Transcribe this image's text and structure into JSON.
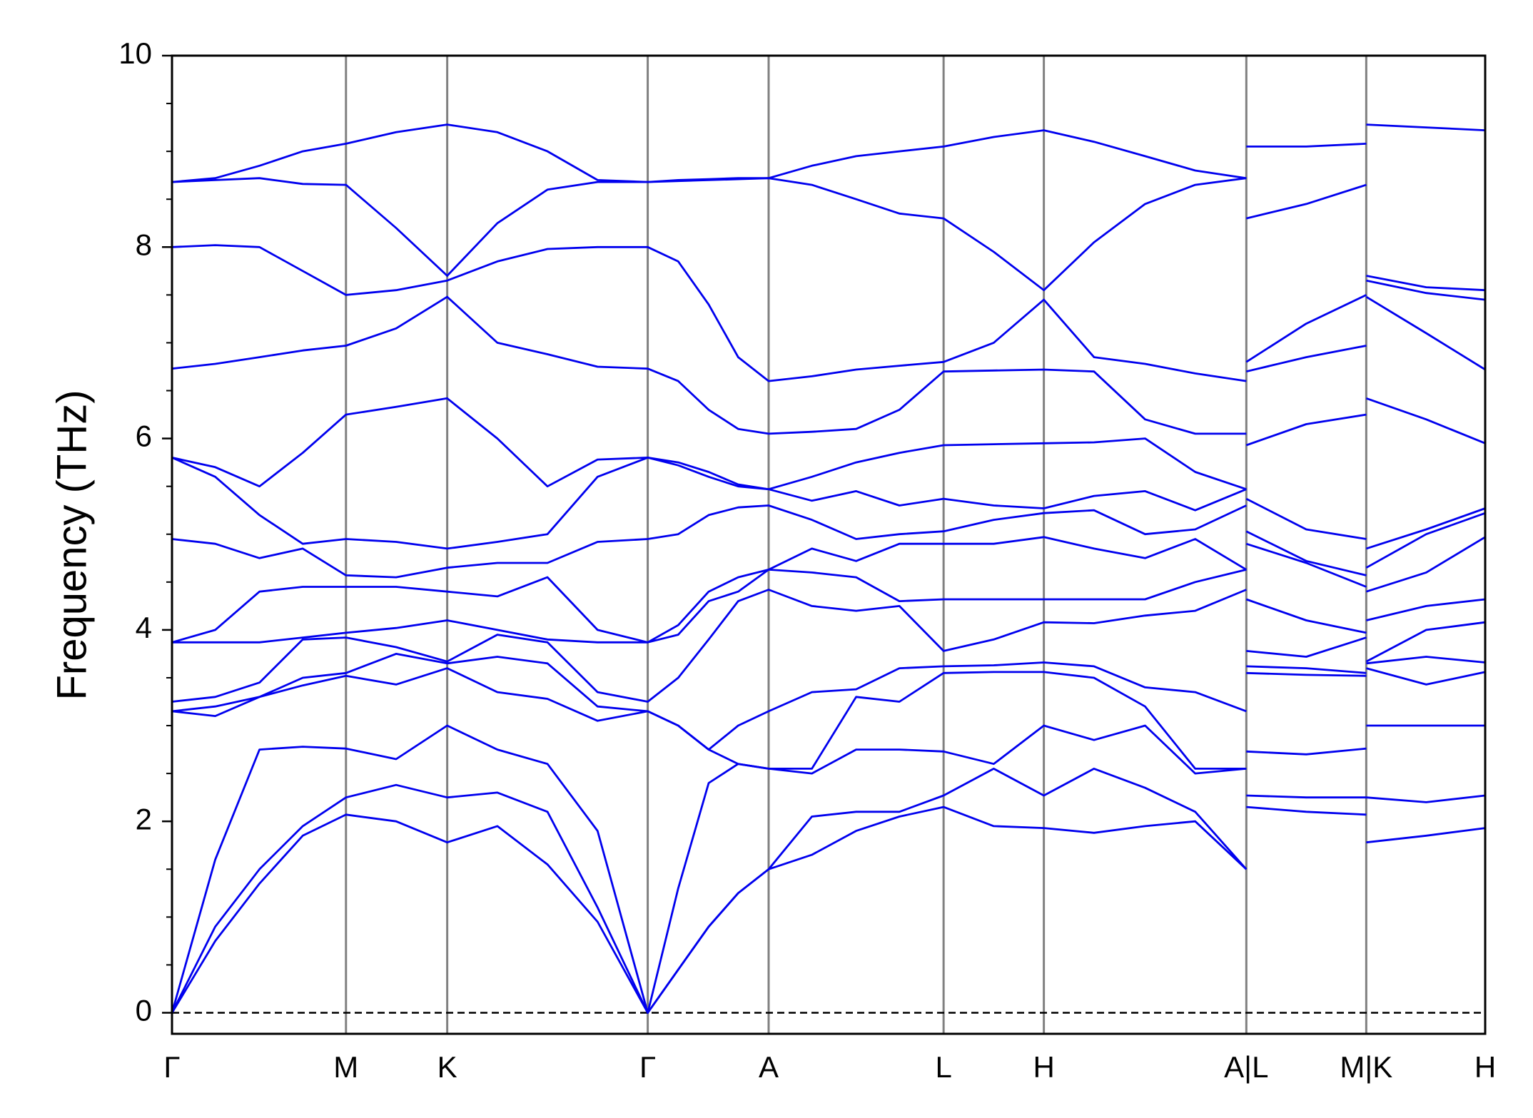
{
  "chart_data": {
    "type": "line",
    "ylabel": "Frequency (THz)",
    "color": "#0000ee",
    "axis_line_color": "#808080",
    "x": [
      0,
      0.44,
      0.89,
      1.33,
      1.77,
      2.28,
      2.8,
      3.31,
      3.82,
      4.33,
      4.84,
      5.15,
      5.46,
      5.76,
      6.07,
      6.51,
      6.96,
      7.4,
      7.85,
      8.36,
      8.87,
      9.38,
      9.9,
      10.41,
      10.93,
      10.93,
      10.93,
      11.54,
      12.15,
      12.15,
      12.15,
      12.76,
      13.36
    ],
    "xlim": [
      0,
      13.36
    ],
    "xticks": [
      {
        "value": 0,
        "label": "Γ"
      },
      {
        "value": 1.77,
        "label": "M"
      },
      {
        "value": 2.8,
        "label": "K"
      },
      {
        "value": 4.84,
        "label": "Γ"
      },
      {
        "value": 6.07,
        "label": "A"
      },
      {
        "value": 7.85,
        "label": "L"
      },
      {
        "value": 8.87,
        "label": "H"
      },
      {
        "value": 10.93,
        "label": "A|L"
      },
      {
        "value": 12.15,
        "label": "M|K"
      },
      {
        "value": 13.36,
        "label": "H"
      }
    ],
    "ylim": [
      -0.22,
      10
    ],
    "yticks": [
      0,
      2,
      4,
      6,
      8,
      10
    ],
    "hlines": [
      0
    ],
    "series": [
      {
        "values": [
          0,
          0.75,
          1.35,
          1.85,
          2.07,
          2.0,
          1.78,
          1.95,
          1.55,
          0.95,
          0,
          0.45,
          0.9,
          1.25,
          1.5,
          1.65,
          1.9,
          2.05,
          2.15,
          1.95,
          1.93,
          1.88,
          1.95,
          2.0,
          1.5,
          null,
          2.15,
          2.1,
          2.07,
          null,
          1.78,
          1.85,
          1.93
        ]
      },
      {
        "values": [
          0,
          0.9,
          1.5,
          1.95,
          2.25,
          2.38,
          2.25,
          2.3,
          2.1,
          1.1,
          0,
          0.45,
          0.9,
          1.25,
          1.5,
          2.05,
          2.1,
          2.1,
          2.27,
          2.55,
          2.27,
          2.55,
          2.35,
          2.1,
          1.5,
          null,
          2.27,
          2.25,
          2.25,
          null,
          2.25,
          2.2,
          2.27
        ]
      },
      {
        "values": [
          0,
          1.6,
          2.75,
          2.78,
          2.76,
          2.65,
          3.0,
          2.75,
          2.6,
          1.9,
          0,
          1.3,
          2.4,
          2.6,
          2.55,
          2.5,
          2.75,
          2.75,
          2.73,
          2.6,
          3.0,
          2.85,
          3.0,
          2.5,
          2.55,
          null,
          2.73,
          2.7,
          2.76,
          null,
          3.0,
          3.0,
          3.0
        ]
      },
      {
        "values": [
          3.15,
          3.1,
          3.3,
          3.42,
          3.52,
          3.43,
          3.6,
          3.35,
          3.28,
          3.05,
          3.15,
          3.0,
          2.75,
          2.6,
          2.55,
          2.55,
          3.3,
          3.25,
          3.55,
          3.56,
          3.56,
          3.5,
          3.2,
          2.55,
          2.55,
          null,
          3.55,
          3.53,
          3.52,
          null,
          3.6,
          3.43,
          3.56
        ]
      },
      {
        "values": [
          3.15,
          3.2,
          3.3,
          3.5,
          3.55,
          3.75,
          3.65,
          3.72,
          3.65,
          3.2,
          3.15,
          3.0,
          2.75,
          3.0,
          3.15,
          3.35,
          3.38,
          3.6,
          3.62,
          3.63,
          3.66,
          3.62,
          3.4,
          3.35,
          3.15,
          null,
          3.62,
          3.6,
          3.55,
          null,
          3.65,
          3.72,
          3.66
        ]
      },
      {
        "values": [
          3.25,
          3.3,
          3.45,
          3.9,
          3.92,
          3.82,
          3.67,
          3.95,
          3.87,
          3.35,
          3.25,
          3.5,
          3.9,
          4.3,
          4.42,
          4.25,
          4.2,
          4.25,
          3.78,
          3.9,
          4.08,
          4.07,
          4.15,
          4.2,
          4.42,
          null,
          3.78,
          3.72,
          3.92,
          null,
          3.67,
          4.0,
          4.08
        ]
      },
      {
        "values": [
          3.87,
          3.87,
          3.87,
          3.92,
          3.97,
          4.02,
          4.1,
          4.0,
          3.9,
          3.87,
          3.87,
          3.95,
          4.3,
          4.4,
          4.63,
          4.6,
          4.55,
          4.3,
          4.32,
          4.32,
          4.32,
          4.32,
          4.32,
          4.5,
          4.63,
          null,
          4.32,
          4.1,
          3.97,
          null,
          4.1,
          4.25,
          4.32
        ]
      },
      {
        "values": [
          3.87,
          4.0,
          4.4,
          4.45,
          4.45,
          4.45,
          4.4,
          4.35,
          4.55,
          4.0,
          3.87,
          4.05,
          4.4,
          4.55,
          4.63,
          4.85,
          4.72,
          4.9,
          4.9,
          4.9,
          4.97,
          4.85,
          4.75,
          4.95,
          4.63,
          null,
          4.9,
          4.7,
          4.45,
          null,
          4.4,
          4.6,
          4.97
        ]
      },
      {
        "values": [
          4.95,
          4.9,
          4.75,
          4.85,
          4.57,
          4.55,
          4.65,
          4.7,
          4.7,
          4.92,
          4.95,
          5.0,
          5.2,
          5.28,
          5.3,
          5.15,
          4.95,
          5.0,
          5.03,
          5.15,
          5.22,
          5.25,
          5.0,
          5.05,
          5.3,
          null,
          5.03,
          4.72,
          4.57,
          null,
          4.65,
          5.0,
          5.22
        ]
      },
      {
        "values": [
          5.8,
          5.6,
          5.2,
          4.9,
          4.95,
          4.92,
          4.85,
          4.92,
          5.0,
          5.6,
          5.8,
          5.72,
          5.6,
          5.5,
          5.47,
          5.35,
          5.45,
          5.3,
          5.37,
          5.3,
          5.27,
          5.4,
          5.45,
          5.25,
          5.47,
          null,
          5.37,
          5.05,
          4.95,
          null,
          4.85,
          5.05,
          5.27
        ]
      },
      {
        "values": [
          5.8,
          5.7,
          5.5,
          5.85,
          6.25,
          6.33,
          6.42,
          6.0,
          5.5,
          5.78,
          5.8,
          5.75,
          5.65,
          5.52,
          5.47,
          5.6,
          5.75,
          5.85,
          5.93,
          5.94,
          5.95,
          5.96,
          6.0,
          5.65,
          5.47,
          null,
          5.93,
          6.15,
          6.25,
          null,
          6.42,
          6.2,
          5.95
        ]
      },
      {
        "values": [
          6.73,
          6.78,
          6.85,
          6.92,
          6.97,
          7.15,
          7.48,
          7.0,
          6.88,
          6.75,
          6.73,
          6.6,
          6.3,
          6.1,
          6.05,
          6.07,
          6.1,
          6.3,
          6.7,
          6.71,
          6.72,
          6.7,
          6.2,
          6.05,
          6.05,
          null,
          6.7,
          6.85,
          6.97,
          null,
          7.48,
          7.1,
          6.72
        ]
      },
      {
        "values": [
          8.0,
          8.02,
          8.0,
          7.75,
          7.5,
          7.55,
          7.65,
          7.85,
          7.98,
          8.0,
          8.0,
          7.85,
          7.4,
          6.85,
          6.6,
          6.65,
          6.72,
          6.76,
          6.8,
          7.0,
          7.45,
          6.85,
          6.78,
          6.68,
          6.6,
          null,
          6.8,
          7.2,
          7.5,
          null,
          7.65,
          7.52,
          7.45
        ]
      },
      {
        "values": [
          8.68,
          8.7,
          8.72,
          8.66,
          8.65,
          8.2,
          7.7,
          8.25,
          8.6,
          8.68,
          8.68,
          8.69,
          8.7,
          8.71,
          8.72,
          8.65,
          8.5,
          8.35,
          8.3,
          7.95,
          7.55,
          8.05,
          8.45,
          8.65,
          8.72,
          null,
          8.3,
          8.45,
          8.65,
          null,
          7.7,
          7.58,
          7.55
        ]
      },
      {
        "values": [
          8.68,
          8.72,
          8.85,
          9.0,
          9.08,
          9.2,
          9.28,
          9.2,
          9.0,
          8.7,
          8.68,
          8.7,
          8.71,
          8.72,
          8.72,
          8.85,
          8.95,
          9.0,
          9.05,
          9.15,
          9.22,
          9.1,
          8.95,
          8.8,
          8.72,
          null,
          9.05,
          9.05,
          9.08,
          null,
          9.28,
          9.25,
          9.22
        ]
      }
    ]
  }
}
